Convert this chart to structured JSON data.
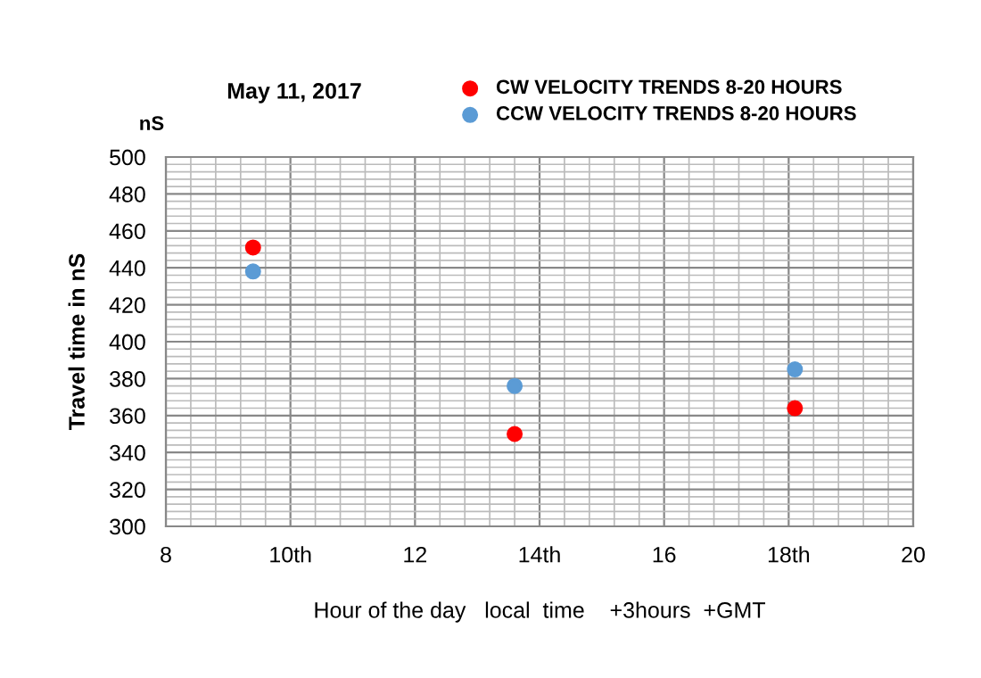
{
  "chart_data": {
    "type": "scatter",
    "title": "May 11, 2017",
    "xlabel": "Hour of the day   local  time    +3hours  +GMT",
    "ylabel": "Travel time in nS",
    "annotations": [
      "nS"
    ],
    "x": [
      9.4,
      13.6,
      18.1
    ],
    "series": [
      {
        "name": "CW VELOCITY TRENDS 8-20 HOURS",
        "color": "#ff0000",
        "values": [
          451,
          350,
          364
        ]
      },
      {
        "name": "CCW VELOCITY TRENDS 8-20 HOURS",
        "color": "#5b9bd5",
        "values": [
          438,
          376,
          385
        ]
      }
    ],
    "xlim": [
      8,
      20
    ],
    "xticks": [
      8,
      {
        "value": 10,
        "label": "10th"
      },
      12,
      {
        "value": 14,
        "label": "14th"
      },
      16,
      {
        "value": 18,
        "label": "18th"
      },
      20
    ],
    "ylim": [
      300,
      500
    ],
    "yticks": [
      300,
      320,
      340,
      360,
      380,
      400,
      420,
      440,
      460,
      480,
      500
    ],
    "grid": true,
    "legend": "top",
    "marker": "circle"
  }
}
